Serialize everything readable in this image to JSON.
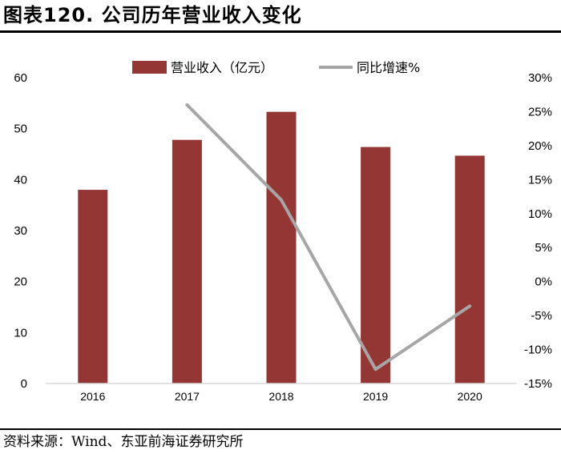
{
  "title": "图表120. 公司历年营业收入变化",
  "source": "资料来源：Wind、东亚前海证券研究所",
  "chart_data": {
    "type": "bar",
    "categories": [
      "2016",
      "2017",
      "2018",
      "2019",
      "2020"
    ],
    "series": [
      {
        "name": "营业收入（亿元）",
        "type": "bar",
        "axis": "left",
        "color": "#943634",
        "values": [
          38.0,
          47.8,
          53.3,
          46.4,
          44.7
        ]
      },
      {
        "name": "同比增速%",
        "type": "line",
        "axis": "right",
        "color": "#a6a6a6",
        "values": [
          null,
          26.0,
          12.0,
          -12.9,
          -3.6
        ]
      }
    ],
    "y_left": {
      "min": 0,
      "max": 60,
      "ticks": [
        "0",
        "10",
        "20",
        "30",
        "40",
        "50",
        "60"
      ]
    },
    "y_right": {
      "min": -15,
      "max": 30,
      "ticks": [
        "-15%",
        "-10%",
        "-5%",
        "0%",
        "5%",
        "10%",
        "15%",
        "20%",
        "25%",
        "30%"
      ]
    },
    "grid": false,
    "legend_position": "top"
  }
}
